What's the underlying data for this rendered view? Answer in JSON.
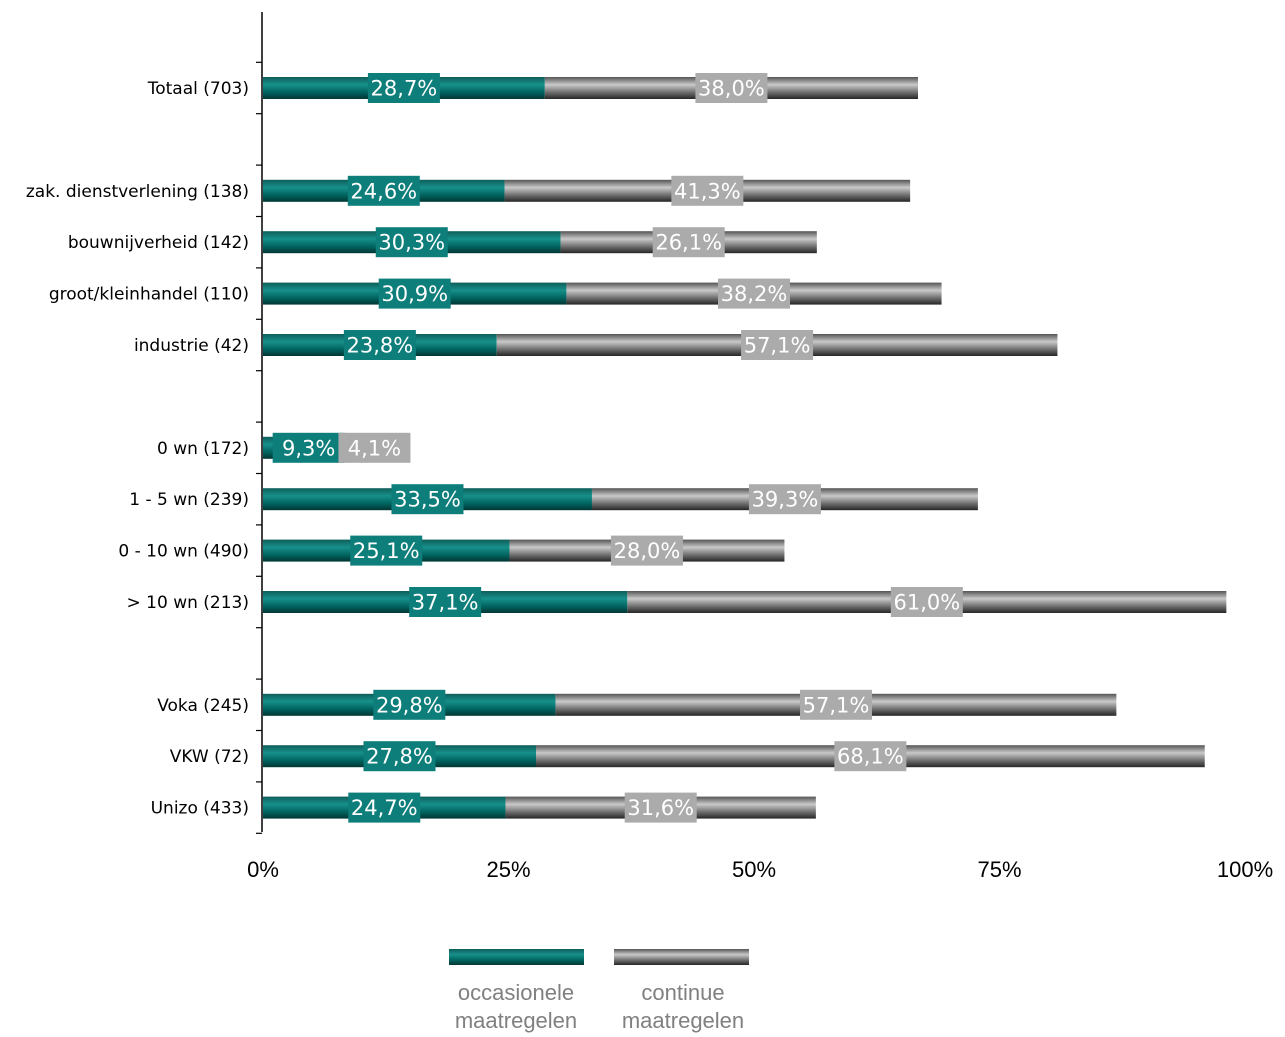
{
  "chart_data": {
    "type": "bar",
    "orientation": "horizontal",
    "stacked": true,
    "categories": [
      "Totaal (703)",
      "zak. dienstverlening (138)",
      "bouwnijverheid (142)",
      "groot/kleinhandel (110)",
      "industrie (42)",
      "0  wn (172)",
      "1 - 5 wn (239)",
      "0 - 10 wn (490)",
      "> 10 wn (213)",
      "Voka (245)",
      "VKW (72)",
      "Unizo (433)"
    ],
    "groups": [
      [
        0
      ],
      [
        1,
        2,
        3,
        4
      ],
      [
        5,
        6,
        7,
        8
      ],
      [
        9,
        10,
        11
      ]
    ],
    "series": [
      {
        "name": "occasionele maatregelen",
        "values": [
          28.7,
          24.6,
          30.3,
          30.9,
          23.8,
          9.3,
          33.5,
          25.1,
          37.1,
          29.8,
          27.8,
          24.7
        ],
        "labels": [
          "28,7%",
          "24,6%",
          "30,3%",
          "30,9%",
          "23,8%",
          "9,3%",
          "33,5%",
          "25,1%",
          "37,1%",
          "29,8%",
          "27,8%",
          "24,7%"
        ],
        "color": "#006D6A",
        "label_bg": "#0E7E7B"
      },
      {
        "name": "continue maatregelen",
        "values": [
          38.0,
          41.3,
          26.1,
          38.2,
          57.1,
          4.1,
          39.3,
          28.0,
          61.0,
          57.1,
          68.1,
          31.6
        ],
        "labels": [
          "38,0%",
          "41,3%",
          "26,1%",
          "38,2%",
          "57,1%",
          "4,1%",
          "39,3%",
          "28,0%",
          "61,0%",
          "57,1%",
          "68,1%",
          "31,6%"
        ],
        "color": "#7A7A7A",
        "label_bg": "#ABABAB"
      }
    ],
    "x_ticks": [
      "0%",
      "25%",
      "50%",
      "75%",
      "100%"
    ],
    "xlim": [
      0,
      100
    ],
    "grid": false,
    "legend_position": "bottom"
  },
  "legend": {
    "occasional_line1": "occasionele",
    "occasional_line2": "maatregelen",
    "continuous_line1": "continue",
    "continuous_line2": "maatregelen"
  }
}
